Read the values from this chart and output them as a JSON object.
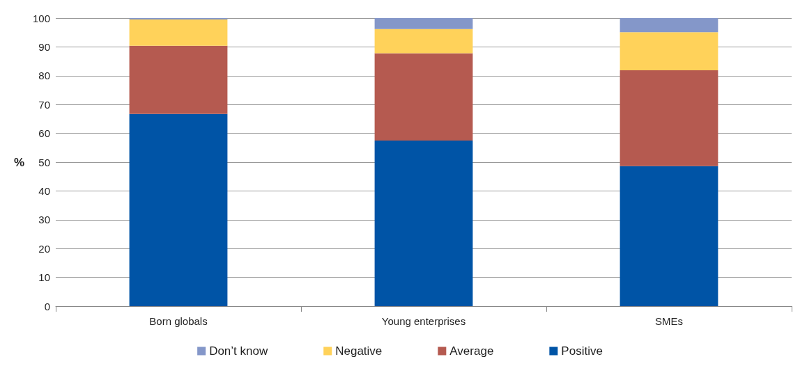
{
  "chart_data": {
    "type": "bar",
    "stacked": true,
    "ylabel": "%",
    "categories": [
      "Born globals",
      "Young enterprises",
      "SMEs"
    ],
    "series": [
      {
        "name": "Positive",
        "color": "#0054a6",
        "values": [
          66.7,
          57.5,
          48.6
        ]
      },
      {
        "name": "Average",
        "color": "#b55a50",
        "values": [
          23.7,
          30.3,
          33.3
        ]
      },
      {
        "name": "Negative",
        "color": "#ffd25a",
        "values": [
          9.1,
          8.4,
          13.2
        ]
      },
      {
        "name": "Don’t know",
        "color": "#8497c9",
        "values": [
          0.5,
          3.8,
          4.9
        ]
      }
    ],
    "ylim": [
      0,
      100
    ],
    "yticks": [
      0,
      10,
      20,
      30,
      40,
      50,
      60,
      70,
      80,
      90,
      100
    ],
    "grid": "y",
    "legend": "bottom"
  }
}
